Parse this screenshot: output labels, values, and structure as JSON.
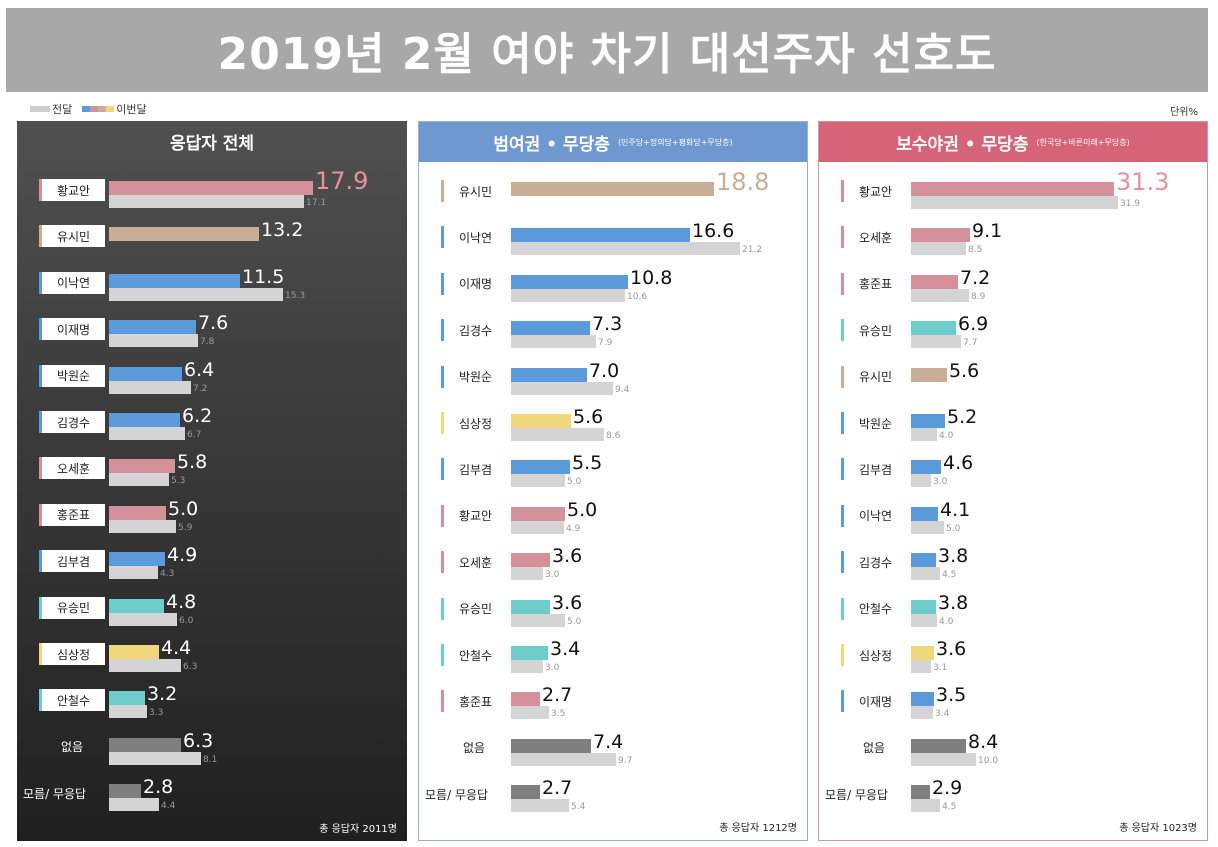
{
  "title": "2019년 2월 여야 차기 대선주자 선호도",
  "legend": {
    "prev": "전달",
    "current": "이번달"
  },
  "unit": "단위%",
  "colors": {
    "blue": "#5b9bdb",
    "pink": "#d4919c",
    "tan": "#c9ad97",
    "yellow": "#f0d77b",
    "teal": "#6dcdcd",
    "gray": "#7f7f7f",
    "prev": "#d4d4d4",
    "header_blue": "#6f98d0",
    "header_pink": "#d56478"
  },
  "chart_data": [
    {
      "type": "bar",
      "title": "응답자 전체",
      "subtitle": "",
      "total": "총 응답자 2011명",
      "categories": [
        "황교안",
        "유시민",
        "이낙연",
        "이재명",
        "박원순",
        "김경수",
        "오세훈",
        "홍준표",
        "김부겸",
        "유승민",
        "심상정",
        "안철수",
        "없음",
        "모름/ 무응답"
      ],
      "series": [
        {
          "name": "이번달",
          "values": [
            17.9,
            13.2,
            11.5,
            7.6,
            6.4,
            6.2,
            5.8,
            5.0,
            4.9,
            4.8,
            4.4,
            3.2,
            6.3,
            2.8
          ]
        },
        {
          "name": "전달",
          "values": [
            17.1,
            null,
            15.3,
            7.8,
            7.2,
            6.7,
            5.3,
            5.9,
            4.3,
            6.0,
            6.3,
            3.3,
            8.1,
            4.4
          ]
        }
      ],
      "color_keys": [
        "pink",
        "tan",
        "blue",
        "blue",
        "blue",
        "blue",
        "pink",
        "pink",
        "blue",
        "teal",
        "yellow",
        "teal",
        "gray",
        "gray"
      ],
      "value_labels": [
        "17.9",
        "13.2",
        "11.5",
        "7.6",
        "6.4",
        "6.2",
        "5.8",
        "5.0",
        "4.9",
        "4.8",
        "4.4",
        "3.2",
        "6.3",
        "2.8"
      ],
      "prev_labels": [
        "17.1",
        "",
        "15.3",
        "7.8",
        "7.2",
        "6.7",
        "5.3",
        "5.9",
        "4.3",
        "6.0",
        "6.3",
        "3.3",
        "8.1",
        "4.4"
      ]
    },
    {
      "type": "bar",
      "title": "범여권 • 무당층",
      "subtitle": "(민주당+정의당+평화당+무당층)",
      "total": "총 응답자 1212명",
      "categories": [
        "유시민",
        "이낙연",
        "이재명",
        "김경수",
        "박원순",
        "심상정",
        "김부겸",
        "황교안",
        "오세훈",
        "유승민",
        "안철수",
        "홍준표",
        "없음",
        "모름/ 무응답"
      ],
      "series": [
        {
          "name": "이번달",
          "values": [
            18.8,
            16.6,
            10.8,
            7.3,
            7.0,
            5.6,
            5.5,
            5.0,
            3.6,
            3.6,
            3.4,
            2.7,
            7.4,
            2.7
          ]
        },
        {
          "name": "전달",
          "values": [
            null,
            21.2,
            10.6,
            7.9,
            9.4,
            8.6,
            5.0,
            4.9,
            3.0,
            5.0,
            3.0,
            3.5,
            9.7,
            5.4
          ]
        }
      ],
      "color_keys": [
        "tan",
        "blue",
        "blue",
        "blue",
        "blue",
        "yellow",
        "blue",
        "pink",
        "pink",
        "teal",
        "teal",
        "pink",
        "gray",
        "gray"
      ],
      "value_labels": [
        "18.8",
        "16.6",
        "10.8",
        "7.3",
        "7.0",
        "5.6",
        "5.5",
        "5.0",
        "3.6",
        "3.6",
        "3.4",
        "2.7",
        "7.4",
        "2.7"
      ],
      "prev_labels": [
        "",
        "21.2",
        "10.6",
        "7.9",
        "9.4",
        "8.6",
        "5.0",
        "4.9",
        "3.0",
        "5.0",
        "3.0",
        "3.5",
        "9.7",
        "5.4"
      ]
    },
    {
      "type": "bar",
      "title": "보수야권 • 무당층",
      "subtitle": "(한국당+바른미래+무당층)",
      "total": "총 응답자 1023명",
      "categories": [
        "황교안",
        "오세훈",
        "홍준표",
        "유승민",
        "유시민",
        "박원순",
        "김부겸",
        "이낙연",
        "김경수",
        "안철수",
        "심상정",
        "이재명",
        "없음",
        "모름/ 무응답"
      ],
      "series": [
        {
          "name": "이번달",
          "values": [
            31.3,
            9.1,
            7.2,
            6.9,
            5.6,
            5.2,
            4.6,
            4.1,
            3.8,
            3.8,
            3.6,
            3.5,
            8.4,
            2.9
          ]
        },
        {
          "name": "전달",
          "values": [
            31.9,
            8.5,
            8.9,
            7.7,
            null,
            4.0,
            3.0,
            5.0,
            4.5,
            4.0,
            3.1,
            3.4,
            10.0,
            4.5
          ]
        }
      ],
      "color_keys": [
        "pink",
        "pink",
        "pink",
        "teal",
        "tan",
        "blue",
        "blue",
        "blue",
        "blue",
        "teal",
        "yellow",
        "blue",
        "gray",
        "gray"
      ],
      "value_labels": [
        "31.3",
        "9.1",
        "7.2",
        "6.9",
        "5.6",
        "5.2",
        "4.6",
        "4.1",
        "3.8",
        "3.8",
        "3.6",
        "3.5",
        "8.4",
        "2.9"
      ],
      "prev_labels": [
        "31.9",
        "8.5",
        "8.9",
        "7.7",
        "",
        "4.0",
        "3.0",
        "5.0",
        "4.5",
        "4.0",
        "3.1",
        "3.4",
        "10.0",
        "4.5"
      ]
    }
  ]
}
